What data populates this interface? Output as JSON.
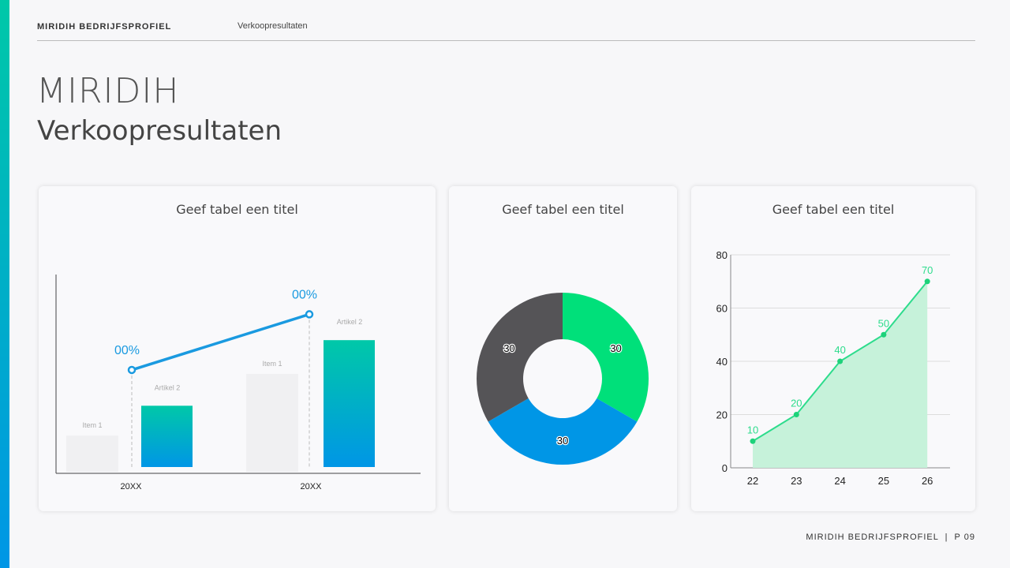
{
  "header": {
    "brand": "MIRIDIH BEDRIJFSPROFIEL",
    "section": "Verkoopresultaten"
  },
  "title": {
    "line1": "MIRIDIH",
    "line2": "Verkoopresultaten"
  },
  "footer": {
    "text": "MIRIDIH BEDRIJFSPROFIEL  |  P 09"
  },
  "colors": {
    "accent_top": "#00c8a8",
    "accent_bottom": "#0096e6",
    "line_blue": "#1a9ae0",
    "green": "#00e07a",
    "gray": "#555457",
    "line_green": "#2ddc8c"
  },
  "chart_data": [
    {
      "type": "bar",
      "title": "Geef tabel een titel",
      "categories": [
        "20XX",
        "20XX"
      ],
      "series": [
        {
          "name": "Item 1",
          "values": [
            19,
            50
          ]
        },
        {
          "name": "Artikel 2",
          "values": [
            34,
            67
          ]
        }
      ],
      "line": {
        "values": [
          52,
          80
        ],
        "labels": [
          "00%",
          "00%"
        ]
      },
      "ylim": [
        0,
        100
      ]
    },
    {
      "type": "pie",
      "title": "Geef tabel een titel",
      "donut": true,
      "slices": [
        {
          "value": 30,
          "label": "30",
          "color": "#00e07a"
        },
        {
          "value": 30,
          "label": "30",
          "color": "#0096e6"
        },
        {
          "value": 30,
          "label": "30",
          "color": "#555457"
        }
      ]
    },
    {
      "type": "area",
      "title": "Geef tabel een titel",
      "x": [
        "22",
        "23",
        "24",
        "25",
        "26"
      ],
      "values": [
        10,
        20,
        40,
        50,
        70
      ],
      "ylim": [
        0,
        80
      ],
      "yticks": [
        "0",
        "20",
        "40",
        "60",
        "80"
      ],
      "grid": true
    }
  ]
}
